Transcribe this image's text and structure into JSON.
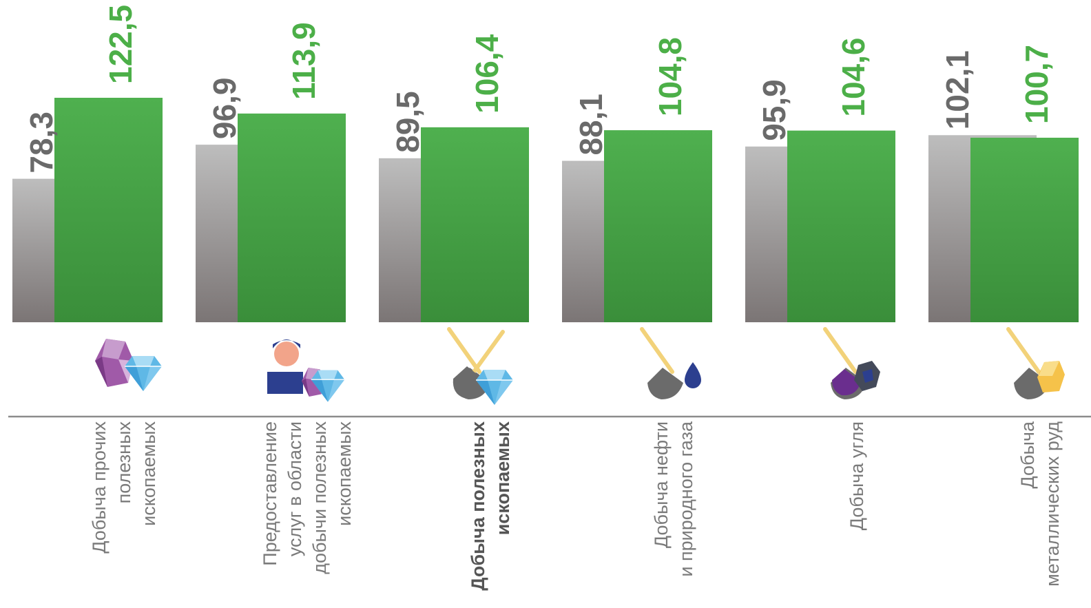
{
  "chart_data": {
    "type": "bar",
    "categories": [
      [
        "Добыча прочих",
        "полезных",
        "ископаемых"
      ],
      [
        "Предоставление",
        "услуг в области",
        "добычи полезных",
        "ископаемых"
      ],
      [
        "Добыча полезных",
        "ископаемых"
      ],
      [
        "Добыча нефти",
        "и природного газа"
      ],
      [
        "Добыча угля"
      ],
      [
        "Добыча",
        "металлических руд"
      ]
    ],
    "bold_category_index": 2,
    "category_icons": [
      "gems-icon",
      "worker-gem-icon",
      "shovel-gem-icon",
      "shovel-oil-icon",
      "shovel-coal-icon",
      "shovel-ore-icon"
    ],
    "series": [
      {
        "values": [
          78.3,
          96.9,
          89.5,
          88.1,
          95.9,
          102.1
        ],
        "labels": [
          "78,3",
          "96,9",
          "89,5",
          "88,1",
          "95,9",
          "102,1"
        ],
        "color": "#8a8585"
      },
      {
        "values": [
          122.5,
          113.9,
          106.4,
          104.8,
          104.6,
          100.7
        ],
        "labels": [
          "122,5",
          "113,9",
          "106,4",
          "104,8",
          "104,6",
          "100,7"
        ],
        "color": "#3f9a40"
      }
    ],
    "ylim": [
      0,
      123
    ],
    "grid": false,
    "legend": "none",
    "colors": {
      "gray_top": "#bdbdbd",
      "gray_bottom": "#7b7575",
      "green_top": "#4fb04f",
      "green_bottom": "#3a8e3a",
      "gray_text": "#6a6a6a",
      "green_text": "#4caf48",
      "axis": "#8c8c8c"
    }
  }
}
